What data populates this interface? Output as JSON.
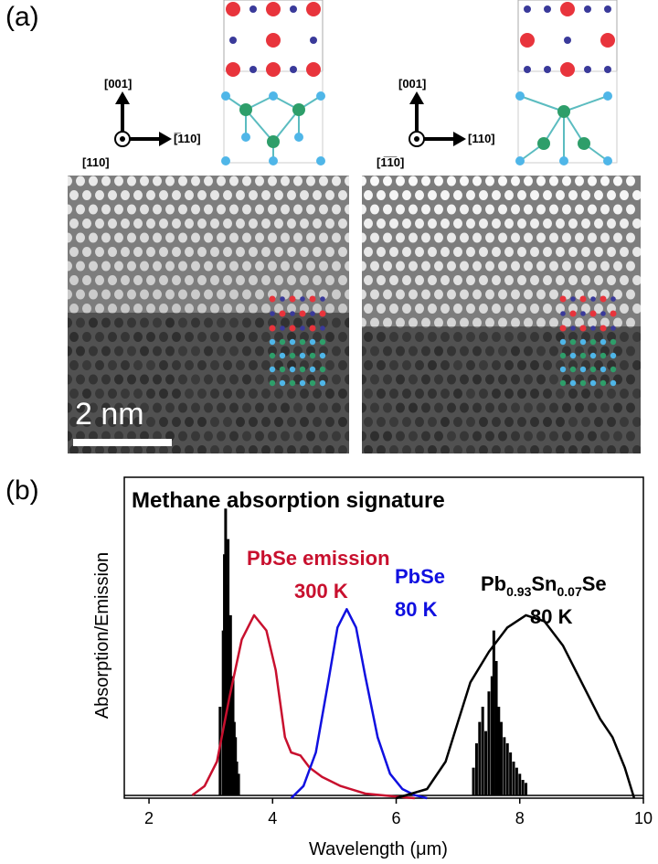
{
  "panel_a": {
    "label": "(a)",
    "left": {
      "axis_up": "[001]",
      "axis_right": "[̅110]",
      "axis_out": "[110]"
    },
    "right": {
      "axis_up": "[001]",
      "axis_right": "[110]",
      "axis_out": "[1̅1̅0]"
    },
    "scale_bar": "2 nm",
    "atom_colors": {
      "red": "#e8343c",
      "navy": "#3a3a9a",
      "cyan": "#4fb6e8",
      "green": "#2e9e6a",
      "bond": "#5bbcc0"
    }
  },
  "panel_b": {
    "label": "(b)"
  },
  "chart_data": {
    "type": "line",
    "title": "Methane absorption signature",
    "xlabel": "Wavelength (μm)",
    "ylabel": "Absorption/Emission",
    "xlim": [
      1.6,
      10
    ],
    "ylim": [
      0,
      1
    ],
    "xticks": [
      2,
      4,
      6,
      8,
      10
    ],
    "series": [
      {
        "name": "PbSe emission 300 K",
        "color": "#c8102e",
        "points": [
          [
            2.7,
            0.01
          ],
          [
            2.9,
            0.04
          ],
          [
            3.1,
            0.12
          ],
          [
            3.3,
            0.33
          ],
          [
            3.5,
            0.52
          ],
          [
            3.7,
            0.6
          ],
          [
            3.9,
            0.55
          ],
          [
            4.05,
            0.42
          ],
          [
            4.2,
            0.2
          ],
          [
            4.3,
            0.15
          ],
          [
            4.45,
            0.14
          ],
          [
            4.6,
            0.1
          ],
          [
            4.8,
            0.07
          ],
          [
            5.1,
            0.04
          ],
          [
            5.5,
            0.015
          ],
          [
            6.0,
            0.005
          ],
          [
            6.3,
            0.0
          ]
        ]
      },
      {
        "name": "PbSe 80 K",
        "color": "#1010e0",
        "points": [
          [
            4.3,
            0.0
          ],
          [
            4.5,
            0.04
          ],
          [
            4.7,
            0.15
          ],
          [
            4.9,
            0.38
          ],
          [
            5.05,
            0.56
          ],
          [
            5.2,
            0.62
          ],
          [
            5.35,
            0.56
          ],
          [
            5.5,
            0.4
          ],
          [
            5.7,
            0.2
          ],
          [
            5.9,
            0.08
          ],
          [
            6.1,
            0.03
          ],
          [
            6.3,
            0.01
          ],
          [
            6.5,
            0.0
          ]
        ]
      },
      {
        "name": "Pb0.93Sn0.07Se 80 K",
        "color": "#000000",
        "points": [
          [
            6.0,
            0.0
          ],
          [
            6.5,
            0.03
          ],
          [
            6.8,
            0.12
          ],
          [
            7.0,
            0.25
          ],
          [
            7.2,
            0.38
          ],
          [
            7.5,
            0.48
          ],
          [
            7.8,
            0.56
          ],
          [
            8.1,
            0.6
          ],
          [
            8.4,
            0.58
          ],
          [
            8.7,
            0.5
          ],
          [
            9.0,
            0.38
          ],
          [
            9.3,
            0.26
          ],
          [
            9.5,
            0.2
          ],
          [
            9.7,
            0.1
          ],
          [
            9.85,
            0.0
          ]
        ]
      }
    ],
    "absorption_bands": [
      {
        "name": "Methane 3.3 μm",
        "peaks": [
          [
            3.15,
            0.3
          ],
          [
            3.2,
            0.55
          ],
          [
            3.22,
            0.8
          ],
          [
            3.24,
            0.95
          ],
          [
            3.26,
            0.7
          ],
          [
            3.28,
            0.85
          ],
          [
            3.3,
            0.5
          ],
          [
            3.32,
            0.6
          ],
          [
            3.34,
            0.35
          ],
          [
            3.36,
            0.4
          ],
          [
            3.38,
            0.25
          ],
          [
            3.4,
            0.2
          ],
          [
            3.42,
            0.12
          ],
          [
            3.45,
            0.08
          ]
        ]
      },
      {
        "name": "Methane 7.7 μm",
        "peaks": [
          [
            7.25,
            0.1
          ],
          [
            7.3,
            0.18
          ],
          [
            7.35,
            0.25
          ],
          [
            7.4,
            0.3
          ],
          [
            7.45,
            0.22
          ],
          [
            7.5,
            0.35
          ],
          [
            7.55,
            0.4
          ],
          [
            7.58,
            0.55
          ],
          [
            7.62,
            0.45
          ],
          [
            7.66,
            0.3
          ],
          [
            7.7,
            0.25
          ],
          [
            7.75,
            0.2
          ],
          [
            7.8,
            0.18
          ],
          [
            7.85,
            0.15
          ],
          [
            7.9,
            0.12
          ],
          [
            7.95,
            0.1
          ],
          [
            8.0,
            0.08
          ],
          [
            8.05,
            0.06
          ],
          [
            8.1,
            0.05
          ]
        ]
      }
    ],
    "annotations": {
      "pbse_emission": [
        "PbSe emission",
        "300 K"
      ],
      "pbse_80k": [
        "PbSe",
        "80 K"
      ],
      "pbsnse": {
        "base1": "Pb",
        "sub1": "0.93",
        "base2": "Sn",
        "sub2": "0.07",
        "base3": "Se",
        "line2": "80 K"
      }
    }
  }
}
